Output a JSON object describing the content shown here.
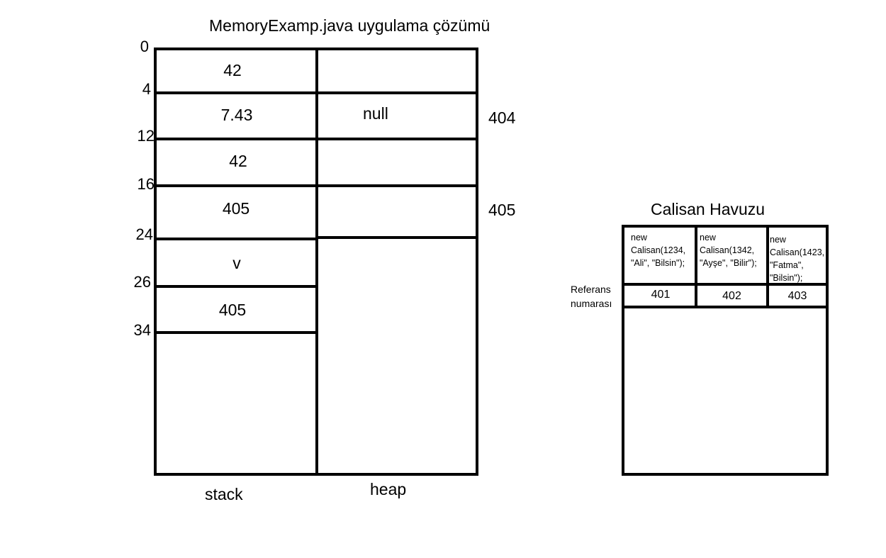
{
  "title": "MemoryExamp.java uygulama çözümü",
  "stack": {
    "label": "stack",
    "addresses": [
      "0",
      "4",
      "12",
      "16",
      "24",
      "26",
      "34"
    ],
    "cells": [
      "42",
      "7.43",
      "42",
      "405",
      "v",
      "405"
    ]
  },
  "heap": {
    "label": "heap",
    "cells": [
      "",
      "null",
      "",
      ""
    ],
    "refs": [
      "404",
      "405"
    ]
  },
  "pool": {
    "title": "Calisan Havuzu",
    "row_label": "Referans\nnumarası",
    "entries": [
      {
        "code": "new\nCalisan(1234,\n\"Ali\", \"Bilsin\");",
        "ref": "401"
      },
      {
        "code": "new\nCalisan(1342,\n\"Ayşe\", \"Bilir\");",
        "ref": "402"
      },
      {
        "code": "new\nCalisan(1423,\n\"Fatma\",\n\"Bilsin\");",
        "ref": "403"
      }
    ]
  }
}
